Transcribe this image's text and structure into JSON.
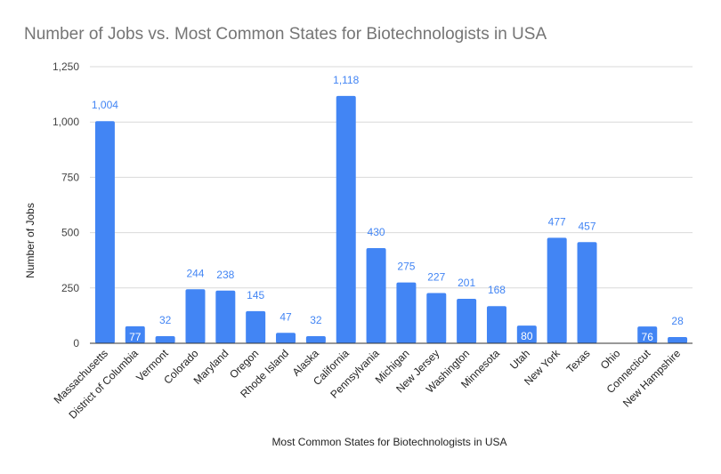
{
  "chart_data": {
    "type": "bar",
    "title": "Number of Jobs vs. Most Common States for Biotechnologists in USA",
    "xlabel": "Most Common States for Biotechnologists in USA",
    "ylabel": "Number of Jobs",
    "ylim": [
      0,
      1250
    ],
    "yticks": [
      0,
      250,
      500,
      750,
      1000,
      1250
    ],
    "ytick_labels": [
      "0",
      "250",
      "500",
      "750",
      "1,000",
      "1,250"
    ],
    "grid": true,
    "bar_color": "#4285f4",
    "label_color": "#4285f4",
    "categories": [
      "Massachusetts",
      "District of Columbia",
      "Vermont",
      "Colorado",
      "Maryland",
      "Oregon",
      "Rhode Island",
      "Alaska",
      "California",
      "Pennsylvania",
      "Michigan",
      "New Jersey",
      "Washington",
      "Minnesota",
      "Utah",
      "New York",
      "Texas",
      "Ohio",
      "Connecticut",
      "New Hampshire"
    ],
    "values": [
      1004,
      77,
      32,
      244,
      238,
      145,
      47,
      32,
      1118,
      430,
      275,
      227,
      201,
      168,
      80,
      477,
      457,
      null,
      76,
      28
    ],
    "value_labels": [
      "1,004",
      "77",
      "32",
      "244",
      "238",
      "145",
      "47",
      "32",
      "1,118",
      "430",
      "275",
      "227",
      "201",
      "168",
      "80",
      "477",
      "457",
      "",
      "76",
      "28"
    ]
  }
}
